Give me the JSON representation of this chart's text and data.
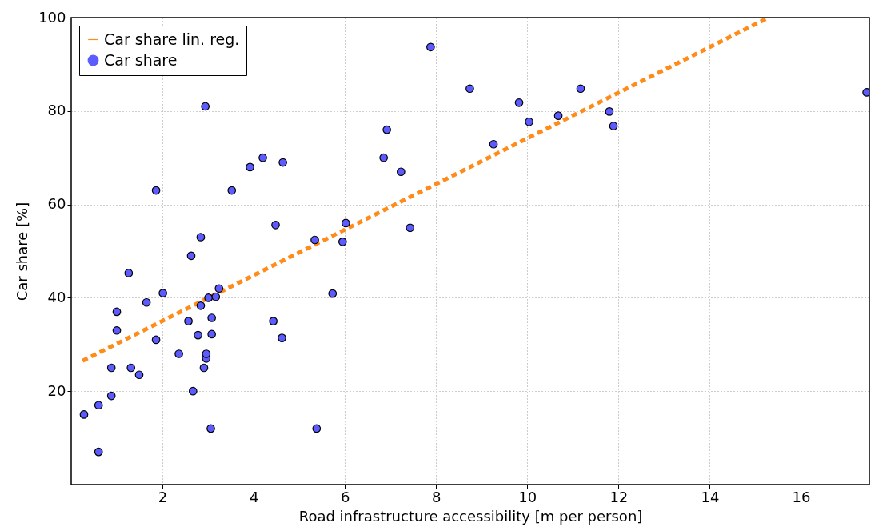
{
  "chart_data": {
    "type": "scatter",
    "xlabel": "Road infrastructure accessibility [m per person]",
    "ylabel": "Car share [%]",
    "xlim": [
      0,
      17.5
    ],
    "ylim": [
      0,
      100
    ],
    "xticks": [
      2,
      4,
      6,
      8,
      10,
      12,
      14,
      16
    ],
    "yticks": [
      20,
      40,
      60,
      80,
      100
    ],
    "grid": true,
    "legend": "top left",
    "series": [
      {
        "name": "Car share lin. reg.",
        "type": "line",
        "line_style": "dashed",
        "color": "#ff8c1a",
        "x": [
          0.25,
          15.29
        ],
        "values": [
          26.5,
          100
        ]
      },
      {
        "name": "Car share",
        "type": "scatter",
        "marker": "circle",
        "color": "#5b5bff",
        "x": [
          0.28,
          0.6,
          0.6,
          0.88,
          0.88,
          1.0,
          1.0,
          1.26,
          1.31,
          1.49,
          1.65,
          1.86,
          1.86,
          2.01,
          2.36,
          2.57,
          2.63,
          2.67,
          2.78,
          2.84,
          2.84,
          2.91,
          2.94,
          2.96,
          2.96,
          3.01,
          3.06,
          3.08,
          3.08,
          3.17,
          3.24,
          3.52,
          3.92,
          4.2,
          4.43,
          4.48,
          4.64,
          4.62,
          5.34,
          5.38,
          5.73,
          5.95,
          6.02,
          6.85,
          6.92,
          7.23,
          7.43,
          7.88,
          8.74,
          9.26,
          9.82,
          10.04,
          10.68,
          11.17,
          11.8,
          11.89,
          17.44
        ],
        "values": [
          15,
          17,
          7,
          19,
          25,
          33,
          37,
          45.3,
          25,
          23.5,
          39,
          63,
          31,
          41,
          28,
          35,
          49,
          20,
          32,
          53,
          38.3,
          25,
          81,
          27,
          28,
          40,
          12,
          35.7,
          32.2,
          40.2,
          42,
          63,
          68,
          70,
          35,
          55.6,
          69,
          31.4,
          52.4,
          12,
          40.9,
          52,
          56,
          70,
          76,
          67,
          55,
          93.7,
          84.8,
          72.9,
          81.8,
          77.7,
          79,
          84.8,
          79.9,
          76.8,
          84
        ]
      }
    ]
  }
}
